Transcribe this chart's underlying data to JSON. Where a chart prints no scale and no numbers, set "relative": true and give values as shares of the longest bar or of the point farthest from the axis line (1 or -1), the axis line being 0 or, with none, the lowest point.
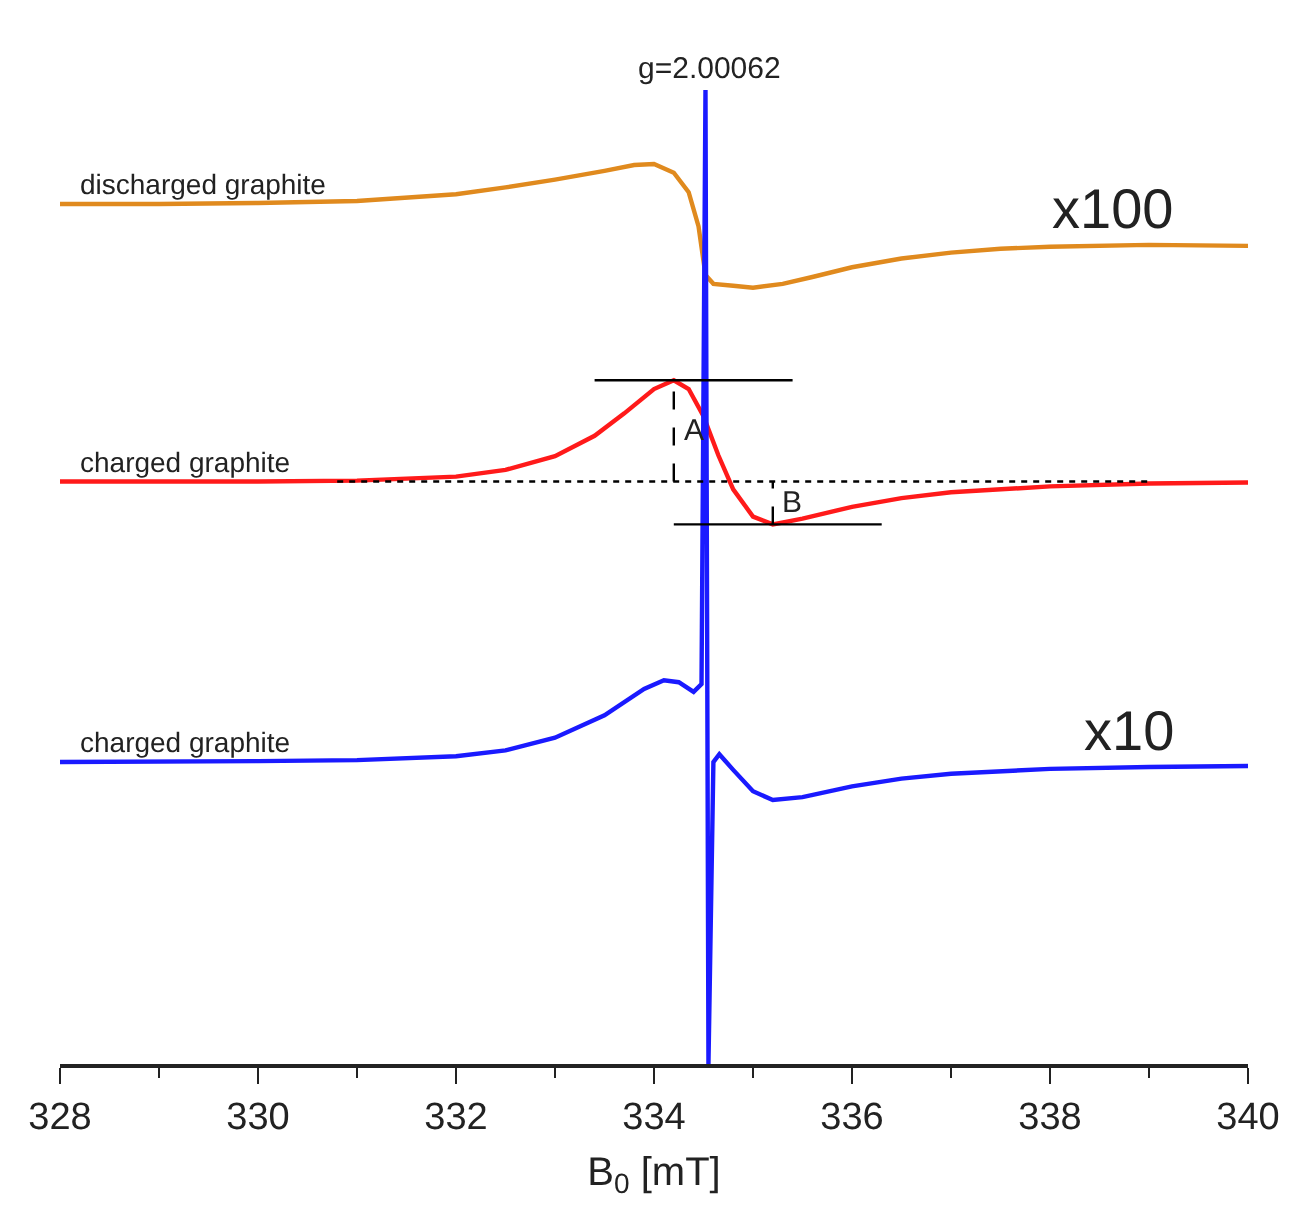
{
  "chart_data": {
    "type": "line",
    "relative": true,
    "xlabel": "B$_{0}$ [mT]",
    "xlim": [
      328,
      340
    ],
    "xticks": [
      328,
      330,
      332,
      334,
      336,
      338,
      340
    ],
    "grid": false,
    "legend": false,
    "marker": "none",
    "series": [
      {
        "name": "discharged graphite",
        "color": "#e08a1e",
        "line_style": "solid",
        "x": [
          328,
          329,
          330,
          331,
          332,
          332.5,
          333,
          333.5,
          333.8,
          334.0,
          334.2,
          334.35,
          334.45,
          334.52,
          334.6,
          334.8,
          335.0,
          335.3,
          335.6,
          336,
          336.5,
          337,
          337.5,
          338,
          339,
          340
        ],
        "values": [
          0.883,
          0.883,
          0.884,
          0.886,
          0.893,
          0.9,
          0.908,
          0.917,
          0.923,
          0.924,
          0.915,
          0.895,
          0.86,
          0.81,
          0.801,
          0.799,
          0.797,
          0.801,
          0.808,
          0.818,
          0.827,
          0.833,
          0.837,
          0.839,
          0.841,
          0.84
        ]
      },
      {
        "name": "charged graphite",
        "color": "#ff1a1a",
        "line_style": "solid",
        "x": [
          328,
          330,
          331,
          332,
          332.5,
          333,
          333.4,
          333.7,
          334.0,
          334.2,
          334.35,
          334.5,
          334.65,
          334.8,
          335.0,
          335.2,
          335.5,
          336,
          336.5,
          337,
          338,
          339,
          340
        ],
        "values": [
          0.598,
          0.598,
          0.599,
          0.603,
          0.61,
          0.624,
          0.645,
          0.668,
          0.693,
          0.702,
          0.693,
          0.665,
          0.625,
          0.59,
          0.562,
          0.554,
          0.56,
          0.572,
          0.581,
          0.587,
          0.593,
          0.596,
          0.597
        ]
      },
      {
        "name": "charged graphite",
        "color": "#1a1aff",
        "line_style": "solid",
        "x": [
          328,
          330,
          331,
          332,
          332.5,
          333,
          333.5,
          333.9,
          334.1,
          334.25,
          334.4,
          334.48,
          334.52,
          334.55,
          334.6,
          334.66,
          334.8,
          335.0,
          335.2,
          335.5,
          336,
          336.5,
          337,
          338,
          339,
          340
        ],
        "values": [
          0.31,
          0.311,
          0.312,
          0.316,
          0.322,
          0.335,
          0.358,
          0.385,
          0.394,
          0.392,
          0.382,
          0.39,
          1.0,
          0.0,
          0.31,
          0.318,
          0.302,
          0.28,
          0.271,
          0.274,
          0.285,
          0.293,
          0.298,
          0.303,
          0.305,
          0.306
        ]
      },
      {
        "color": "#000000",
        "line_style": "solid",
        "x": [
          333.4,
          335.4
        ],
        "values": [
          0.702,
          0.702
        ]
      },
      {
        "color": "#000000",
        "line_style": "solid",
        "x": [
          334.2,
          336.3
        ],
        "values": [
          0.554,
          0.554
        ]
      },
      {
        "color": "#000000",
        "line_style": "dotted",
        "x": [
          330.8,
          339
        ],
        "values": [
          0.598,
          0.598
        ]
      },
      {
        "color": "#000000",
        "line_style": "dashed",
        "x": [
          334.2,
          334.2
        ],
        "values": [
          0.598,
          0.702
        ]
      },
      {
        "color": "#000000",
        "line_style": "dashed",
        "x": [
          335.2,
          335.2
        ],
        "values": [
          0.554,
          0.598
        ]
      }
    ],
    "annotations": [
      {
        "text": "g=2.00062",
        "x": 334.55,
        "y": 1.0
      },
      {
        "text": "x100",
        "x": 339.3,
        "y": 0.841
      },
      {
        "text": "x10",
        "x": 339.3,
        "y": 0.305
      },
      {
        "text": "A",
        "x": 334.2,
        "y": 0.65
      },
      {
        "text": "B",
        "x": 335.2,
        "y": 0.576
      }
    ]
  }
}
